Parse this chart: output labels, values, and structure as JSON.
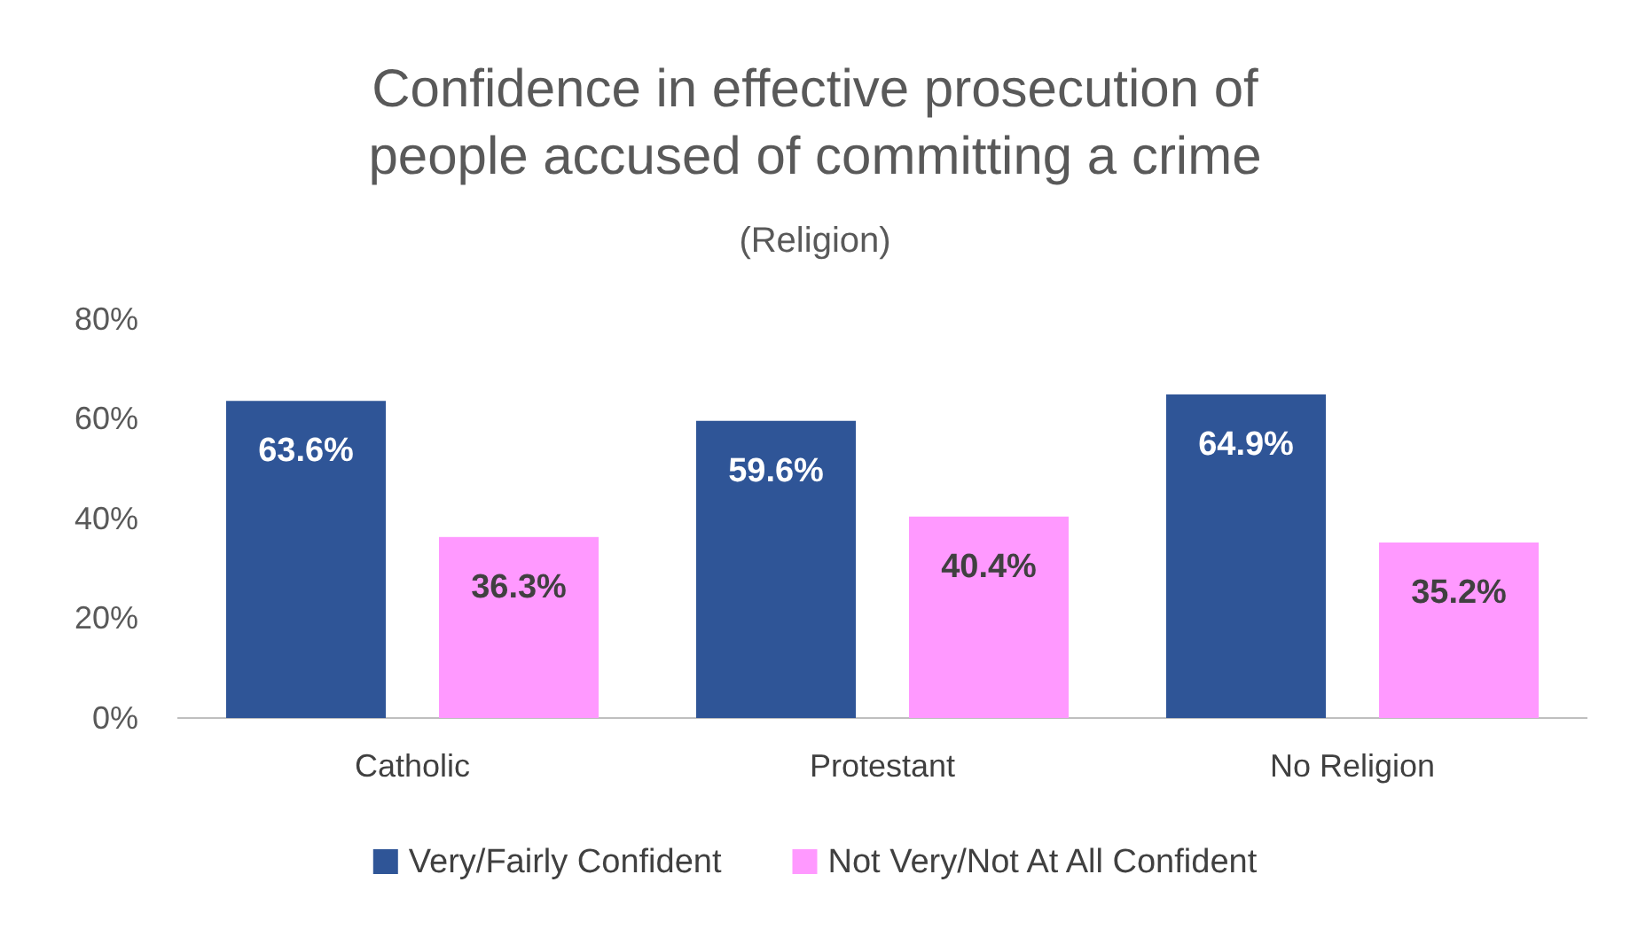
{
  "chart_data": {
    "type": "bar",
    "title": "Confidence in effective prosecution of people accused of committing a crime",
    "subtitle": "(Religion)",
    "categories": [
      "Catholic",
      "Protestant",
      "No Religion"
    ],
    "series": [
      {
        "name": "Very/Fairly Confident",
        "color": "#2f5597",
        "values": [
          63.6,
          59.6,
          64.9
        ],
        "value_labels": [
          "63.6%",
          "59.6%",
          "64.9%"
        ]
      },
      {
        "name": "Not Very/Not At All Confident",
        "color": "#ff99ff",
        "values": [
          36.3,
          40.4,
          35.2
        ],
        "value_labels": [
          "36.3%",
          "40.4%",
          "35.2%"
        ]
      }
    ],
    "ylim": [
      0,
      80
    ],
    "yticks": [
      {
        "value": 0,
        "label": "0%"
      },
      {
        "value": 20,
        "label": "20%"
      },
      {
        "value": 40,
        "label": "40%"
      },
      {
        "value": 60,
        "label": "60%"
      },
      {
        "value": 80,
        "label": "80%"
      }
    ],
    "grid": false,
    "legend": "bottom"
  }
}
